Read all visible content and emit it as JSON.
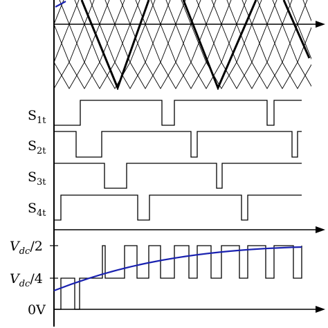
{
  "labels": {
    "s1": {
      "main": "S",
      "sub": "1t"
    },
    "s2": {
      "main": "S",
      "sub": "2t"
    },
    "s3": {
      "main": "S",
      "sub": "3t"
    },
    "s4": {
      "main": "S",
      "sub": "4t"
    },
    "vdc2": {
      "main": "V",
      "sub": "dc",
      "tail": "/2"
    },
    "vdc4": {
      "main": "V",
      "sub": "dc",
      "tail": "/4"
    },
    "zero": "0V"
  },
  "colors": {
    "ink": "#000000",
    "reference": "#1a22b0",
    "background": "#ffffff"
  }
}
